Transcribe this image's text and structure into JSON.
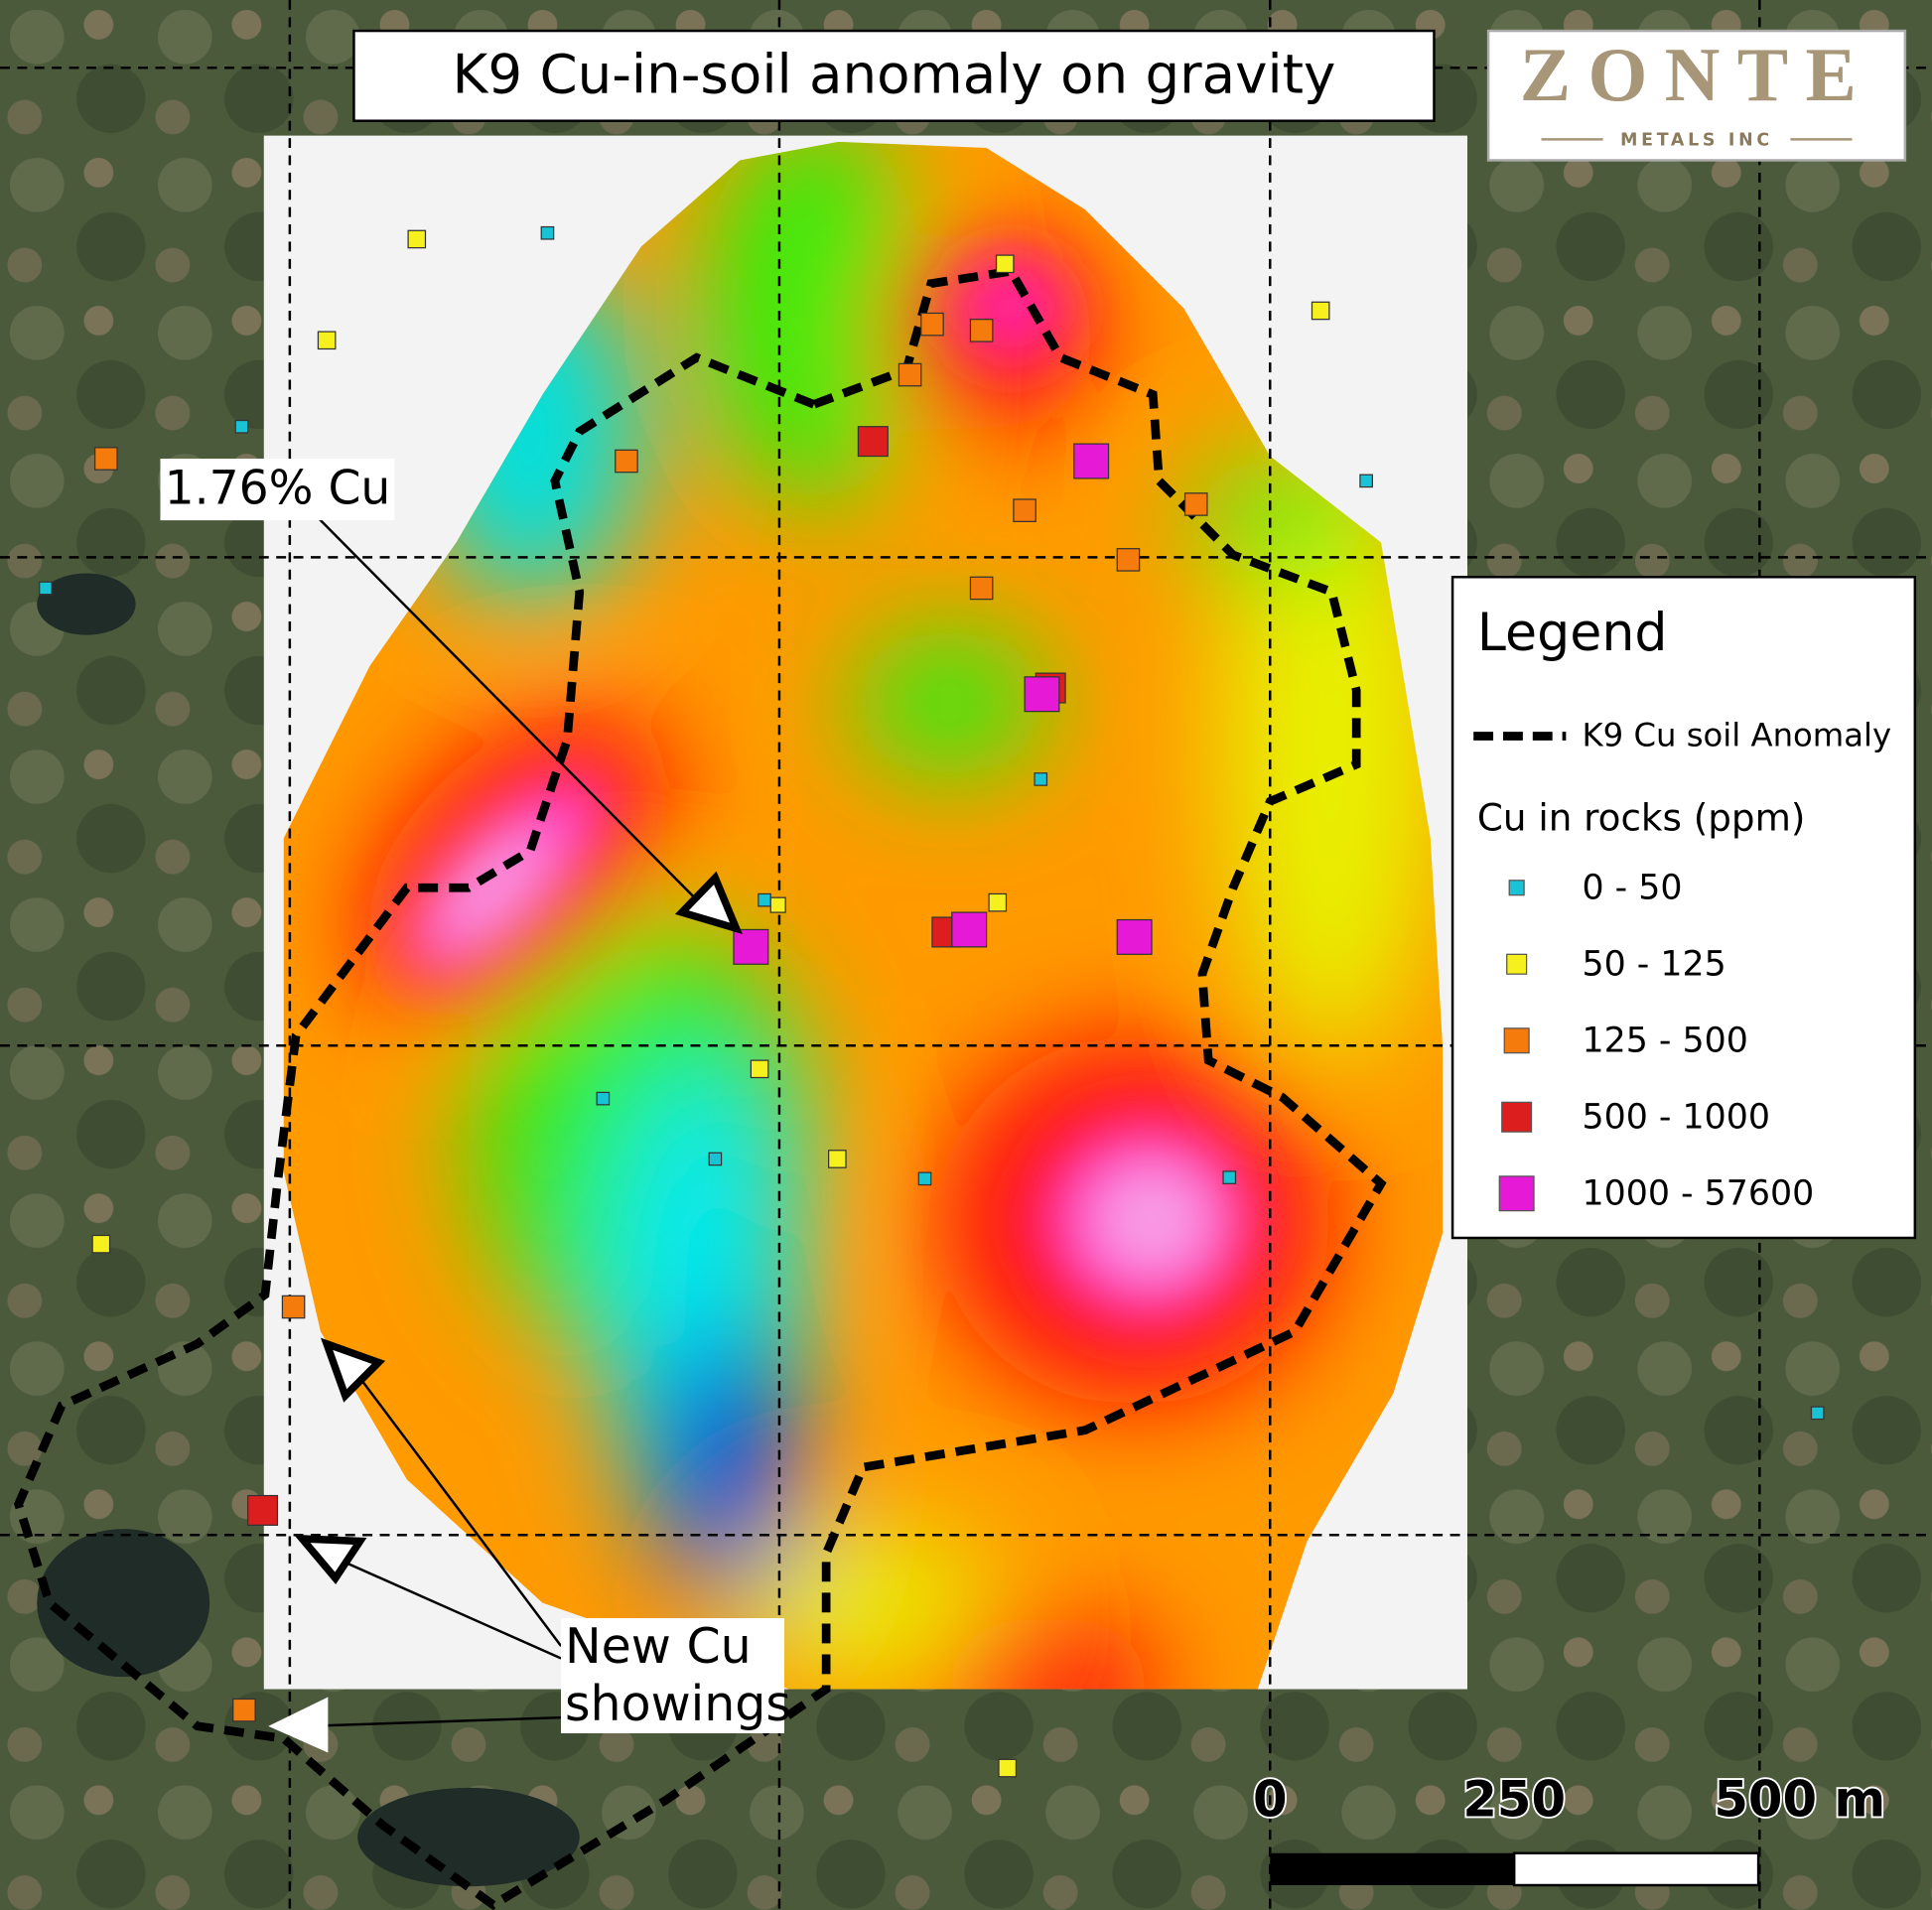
{
  "title": "K9 Cu-in-soil anomaly on gravity",
  "logo": {
    "name": "ZONTE",
    "subtitle": "METALS INC"
  },
  "annotations": {
    "assay": "1.76% Cu",
    "new_showings": "New Cu showings"
  },
  "legend": {
    "title": "Legend",
    "line_label": "K9 Cu soil Anomaly",
    "points_title": "Cu in rocks (ppm)",
    "items": [
      {
        "label": "0 - 50",
        "color": "#19c3d6"
      },
      {
        "label": "50 - 125",
        "color": "#f5f01e"
      },
      {
        "label": "125 - 500",
        "color": "#f57c0c"
      },
      {
        "label": "500 - 1000",
        "color": "#dc1e1e"
      },
      {
        "label": "1000 - 57600",
        "color": "#e619d6"
      }
    ]
  },
  "scale_bar": {
    "labels": [
      "0",
      "250",
      "500 m"
    ]
  }
}
